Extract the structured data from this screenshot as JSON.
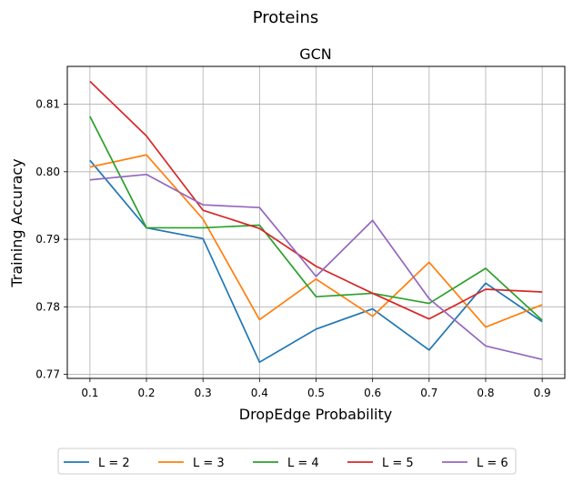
{
  "figure": {
    "suptitle": "Proteins"
  },
  "chart_data": {
    "type": "line",
    "title": "GCN",
    "xlabel": "DropEdge Probability",
    "ylabel": "Training Accuracy",
    "x": [
      0.1,
      0.2,
      0.3,
      0.4,
      0.5,
      0.6,
      0.7,
      0.8,
      0.9
    ],
    "x_ticks": [
      "0.1",
      "0.2",
      "0.3",
      "0.4",
      "0.5",
      "0.6",
      "0.7",
      "0.8",
      "0.9"
    ],
    "y_ticks": [
      0.77,
      0.78,
      0.79,
      0.8,
      0.81
    ],
    "y_tick_labels": [
      "0.77",
      "0.78",
      "0.79",
      "0.80",
      "0.81"
    ],
    "xlim": [
      0.06,
      0.94
    ],
    "ylim": [
      0.7694,
      0.8156
    ],
    "grid": true,
    "legend_position": "bottom (below plot), 5 columns",
    "series": [
      {
        "name": "L = 2",
        "color": "#1f77b4",
        "values": [
          0.8017,
          0.7917,
          0.7901,
          0.7718,
          0.7767,
          0.7797,
          0.7736,
          0.7835,
          0.7778
        ]
      },
      {
        "name": "L = 3",
        "color": "#ff7f0e",
        "values": [
          0.8007,
          0.8025,
          0.793,
          0.7781,
          0.7841,
          0.7786,
          0.7866,
          0.777,
          0.7803
        ]
      },
      {
        "name": "L = 4",
        "color": "#2ca02c",
        "values": [
          0.8082,
          0.7917,
          0.7917,
          0.7921,
          0.7815,
          0.782,
          0.7805,
          0.7857,
          0.778
        ]
      },
      {
        "name": "L = 5",
        "color": "#d62728",
        "values": [
          0.8134,
          0.8053,
          0.7943,
          0.7916,
          0.786,
          0.782,
          0.7782,
          0.7826,
          0.7822
        ]
      },
      {
        "name": "L = 6",
        "color": "#9467bd",
        "values": [
          0.7988,
          0.7996,
          0.7951,
          0.7947,
          0.7845,
          0.7928,
          0.7812,
          0.7742,
          0.7722
        ]
      }
    ]
  }
}
